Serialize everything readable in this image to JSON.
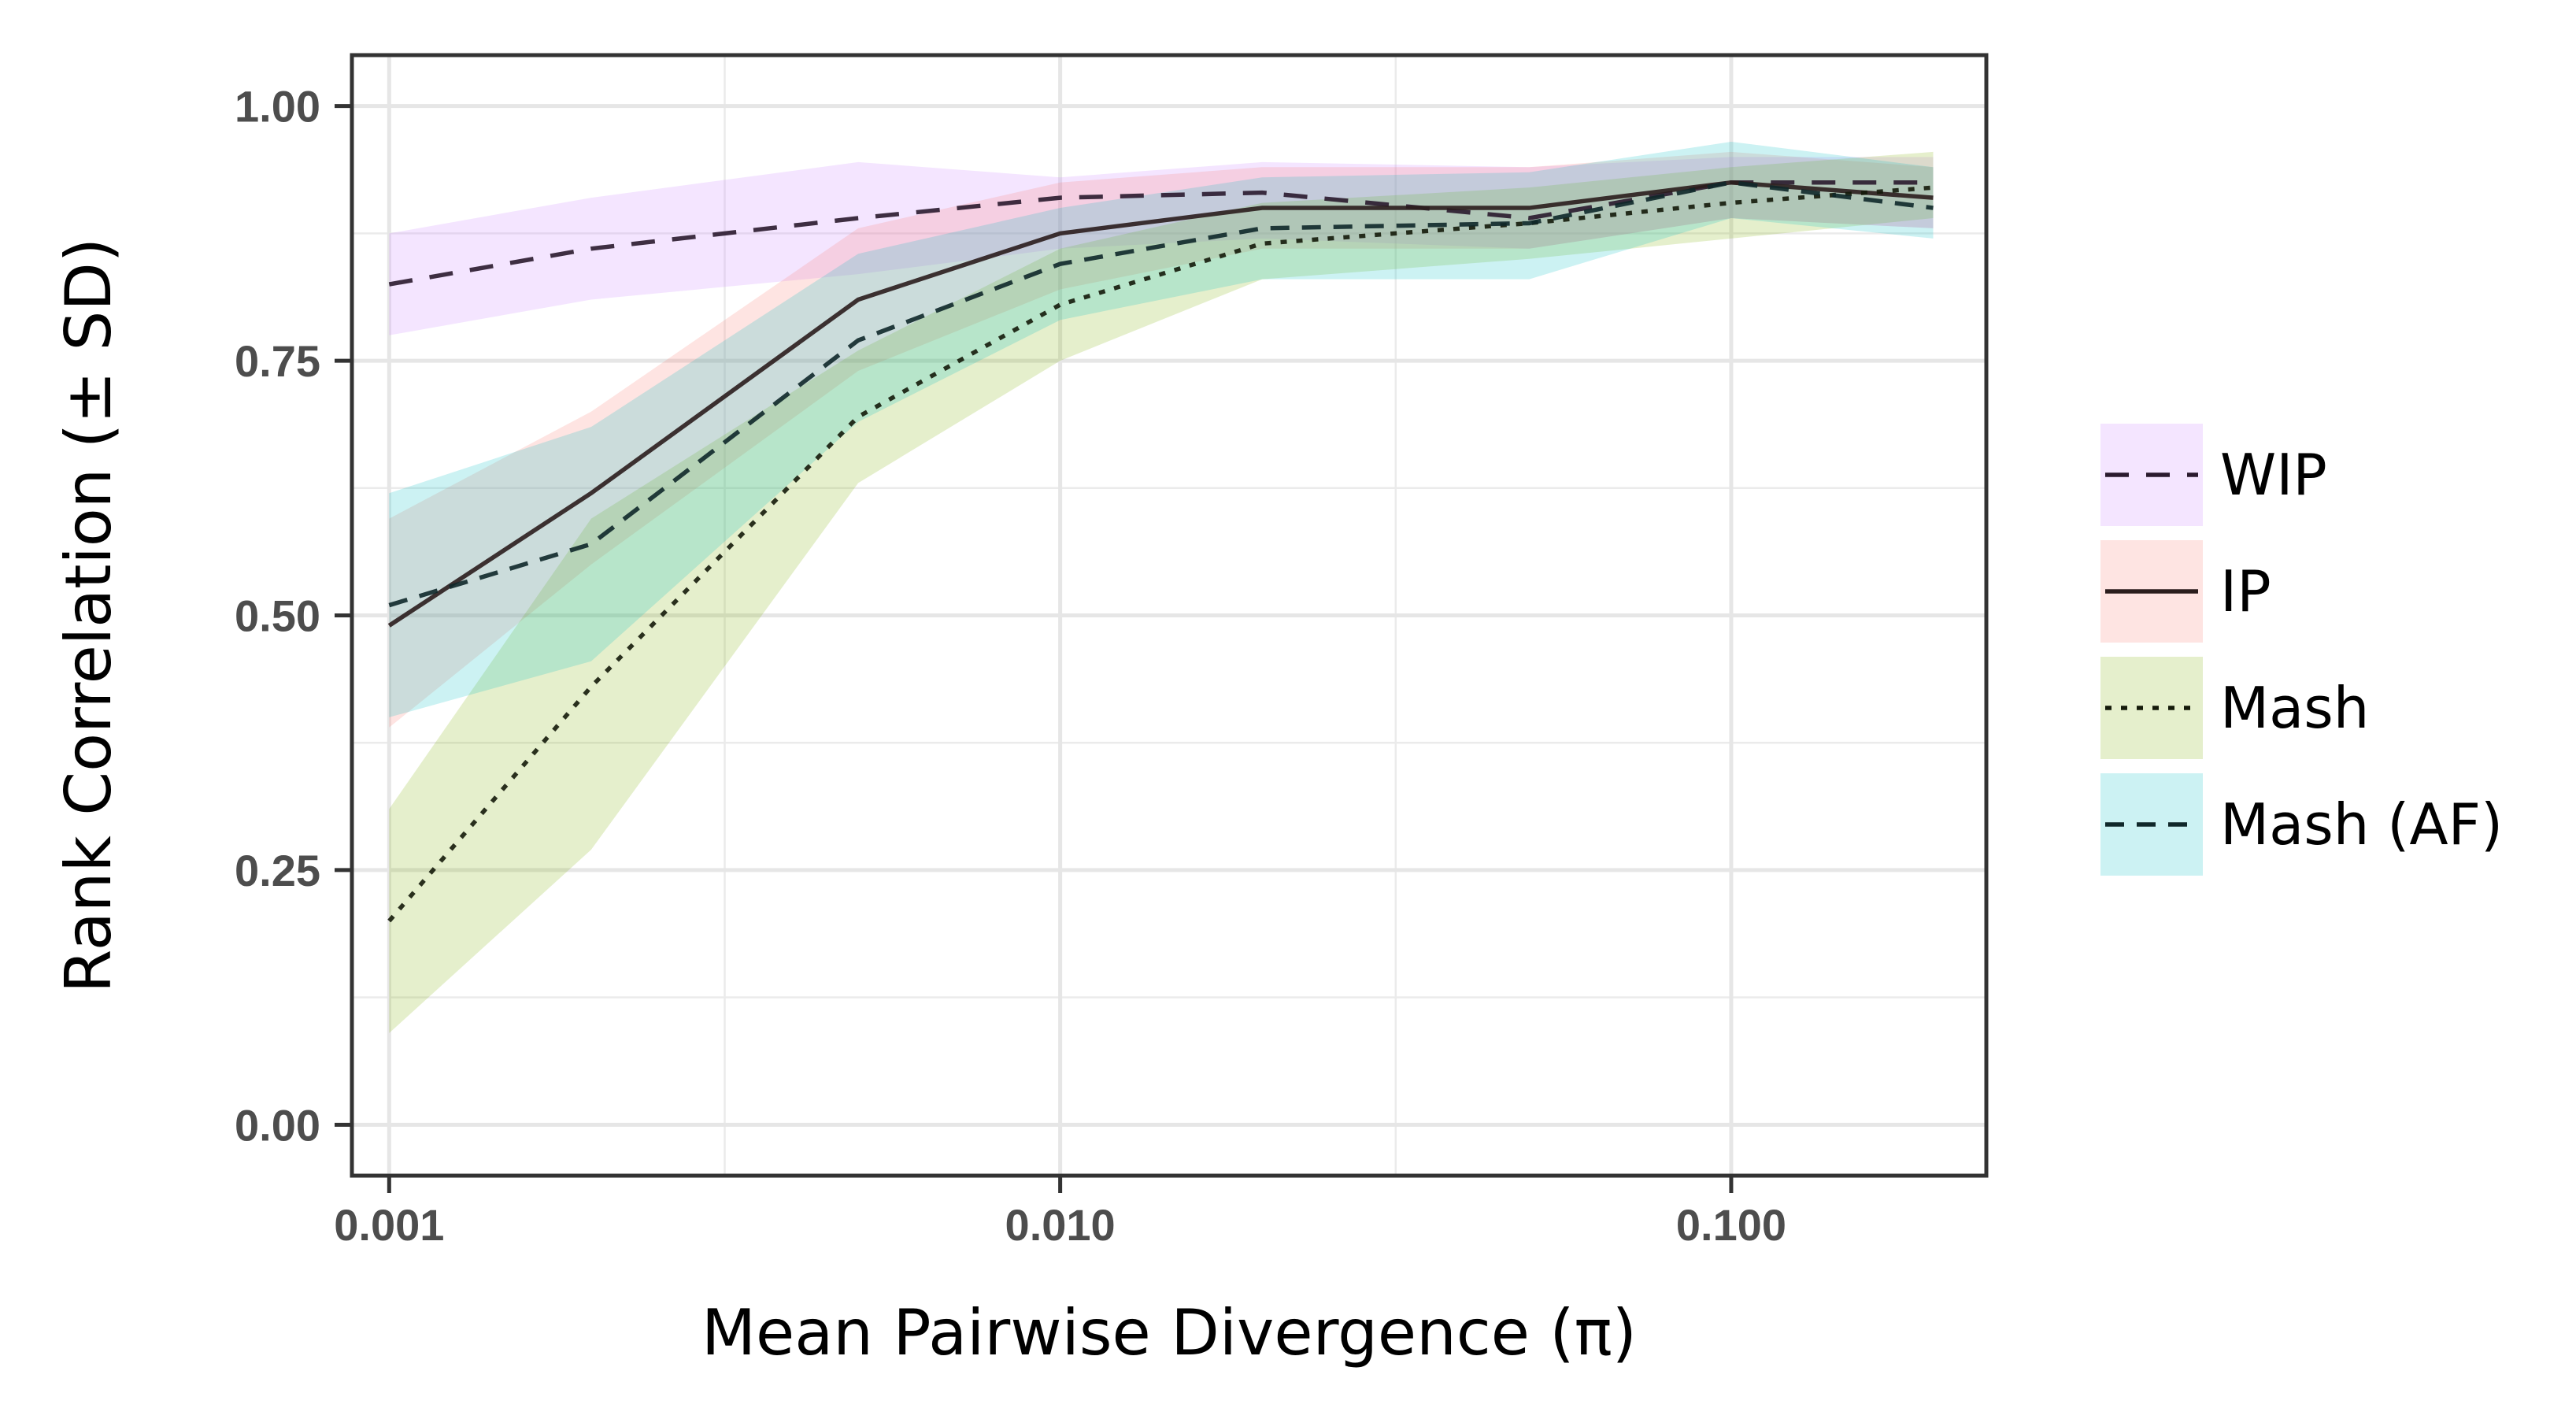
{
  "chart_data": {
    "type": "line",
    "xlabel": "Mean Pairwise Divergence (π)",
    "ylabel": "Rank Correlation (± SD)",
    "x_scale": "log10",
    "xlim": [
      0.00088,
      0.24
    ],
    "ylim": [
      -0.05,
      1.05
    ],
    "x_ticks": [
      {
        "value": 0.001,
        "label": "0.001"
      },
      {
        "value": 0.01,
        "label": "0.010"
      },
      {
        "value": 0.1,
        "label": "0.100"
      }
    ],
    "y_ticks": [
      {
        "value": 0.0,
        "label": "0.00"
      },
      {
        "value": 0.25,
        "label": "0.25"
      },
      {
        "value": 0.5,
        "label": "0.50"
      },
      {
        "value": 0.75,
        "label": "0.75"
      },
      {
        "value": 1.0,
        "label": "1.00"
      }
    ],
    "grid": true,
    "legend_position": "right",
    "x": [
      0.001,
      0.002,
      0.005,
      0.01,
      0.02,
      0.05,
      0.1,
      0.2
    ],
    "series": [
      {
        "name": "WIP",
        "linetype": "dashed-long",
        "line_color": "#2a1a2e",
        "fill_color": "#c77cff",
        "values": [
          0.825,
          0.86,
          0.89,
          0.91,
          0.915,
          0.89,
          0.925,
          0.925
        ],
        "sd_low": [
          0.775,
          0.81,
          0.835,
          0.86,
          0.87,
          0.86,
          0.89,
          0.88
        ],
        "sd_high": [
          0.875,
          0.91,
          0.945,
          0.93,
          0.945,
          0.94,
          0.95,
          0.95
        ]
      },
      {
        "name": "IP",
        "linetype": "solid",
        "line_color": "#2b1d1d",
        "fill_color": "#f8766d",
        "values": [
          0.49,
          0.62,
          0.81,
          0.875,
          0.9,
          0.9,
          0.925,
          0.91
        ],
        "sd_low": [
          0.39,
          0.55,
          0.74,
          0.82,
          0.86,
          0.86,
          0.89,
          0.88
        ],
        "sd_high": [
          0.595,
          0.7,
          0.88,
          0.925,
          0.94,
          0.94,
          0.955,
          0.94
        ]
      },
      {
        "name": "Mash",
        "linetype": "dotted",
        "line_color": "#141a0a",
        "fill_color": "#7cae00",
        "values": [
          0.2,
          0.43,
          0.695,
          0.805,
          0.865,
          0.885,
          0.905,
          0.92
        ],
        "sd_low": [
          0.09,
          0.27,
          0.63,
          0.75,
          0.83,
          0.85,
          0.87,
          0.89
        ],
        "sd_high": [
          0.31,
          0.595,
          0.76,
          0.86,
          0.905,
          0.92,
          0.94,
          0.955
        ]
      },
      {
        "name": "Mash (AF)",
        "linetype": "dashed",
        "line_color": "#10282a",
        "fill_color": "#00bfc4",
        "values": [
          0.51,
          0.57,
          0.77,
          0.845,
          0.88,
          0.885,
          0.925,
          0.9
        ],
        "sd_low": [
          0.4,
          0.455,
          0.69,
          0.79,
          0.83,
          0.83,
          0.89,
          0.87
        ],
        "sd_high": [
          0.62,
          0.685,
          0.855,
          0.9,
          0.93,
          0.935,
          0.965,
          0.94
        ]
      }
    ]
  }
}
